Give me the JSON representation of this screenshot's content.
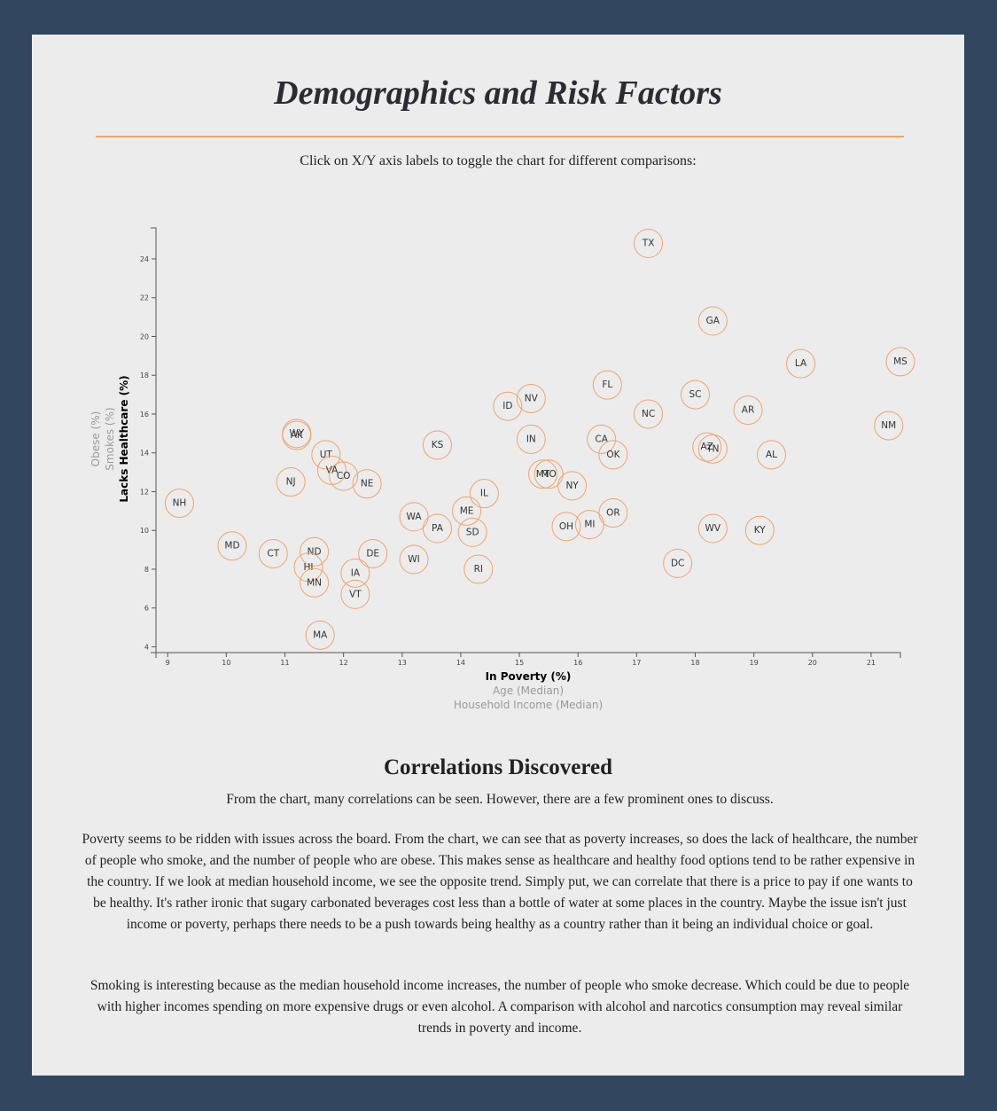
{
  "header": {
    "title": "Demographics and Risk Factors",
    "instructions": "Click on X/Y axis labels to toggle the chart for different comparisons:"
  },
  "chart_data": {
    "type": "scatter",
    "xlabel": "In Poverty (%)",
    "ylabel": "Lacks Healthcare (%)",
    "x_axis_options": [
      "In Poverty (%)",
      "Age (Median)",
      "Household Income (Median)"
    ],
    "y_axis_options": [
      "Lacks Healthcare (%)",
      "Smokes (%)",
      "Obese (%)"
    ],
    "active_x": "In Poverty (%)",
    "active_y": "Lacks Healthcare (%)",
    "xlim": [
      8.8,
      21.5
    ],
    "ylim": [
      3.7,
      25.6
    ],
    "x_ticks": [
      9,
      10,
      11,
      12,
      13,
      14,
      15,
      16,
      17,
      18,
      19,
      20,
      21
    ],
    "y_ticks": [
      4,
      6,
      8,
      10,
      12,
      14,
      16,
      18,
      20,
      22,
      24
    ],
    "marker_color": "#f0a36b",
    "points": [
      {
        "label": "TX",
        "x": 17.2,
        "y": 24.8
      },
      {
        "label": "GA",
        "x": 18.3,
        "y": 20.8
      },
      {
        "label": "LA",
        "x": 19.8,
        "y": 18.6
      },
      {
        "label": "MS",
        "x": 21.5,
        "y": 18.7
      },
      {
        "label": "FL",
        "x": 16.5,
        "y": 17.5
      },
      {
        "label": "SC",
        "x": 18.0,
        "y": 17.0
      },
      {
        "label": "NV",
        "x": 15.2,
        "y": 16.8
      },
      {
        "label": "ID",
        "x": 14.8,
        "y": 16.4
      },
      {
        "label": "AR",
        "x": 18.9,
        "y": 16.2
      },
      {
        "label": "NC",
        "x": 17.2,
        "y": 16.0
      },
      {
        "label": "NM",
        "x": 21.3,
        "y": 15.4
      },
      {
        "label": "WY",
        "x": 11.2,
        "y": 15.0
      },
      {
        "label": "AK",
        "x": 11.2,
        "y": 14.9
      },
      {
        "label": "IN",
        "x": 15.2,
        "y": 14.7
      },
      {
        "label": "CA",
        "x": 16.4,
        "y": 14.7
      },
      {
        "label": "KS",
        "x": 13.6,
        "y": 14.4
      },
      {
        "label": "AZ",
        "x": 18.2,
        "y": 14.3
      },
      {
        "label": "TN",
        "x": 18.3,
        "y": 14.2
      },
      {
        "label": "OK",
        "x": 16.6,
        "y": 13.9
      },
      {
        "label": "AL",
        "x": 19.3,
        "y": 13.9
      },
      {
        "label": "UT",
        "x": 11.7,
        "y": 13.9
      },
      {
        "label": "VA",
        "x": 11.8,
        "y": 13.1
      },
      {
        "label": "MT",
        "x": 15.4,
        "y": 12.9
      },
      {
        "label": "MO",
        "x": 15.5,
        "y": 12.9
      },
      {
        "label": "CO",
        "x": 12.0,
        "y": 12.8
      },
      {
        "label": "NJ",
        "x": 11.1,
        "y": 12.5
      },
      {
        "label": "NE",
        "x": 12.4,
        "y": 12.4
      },
      {
        "label": "NY",
        "x": 15.9,
        "y": 12.3
      },
      {
        "label": "IL",
        "x": 14.4,
        "y": 11.9
      },
      {
        "label": "NH",
        "x": 9.2,
        "y": 11.4
      },
      {
        "label": "ME",
        "x": 14.1,
        "y": 11.0
      },
      {
        "label": "OR",
        "x": 16.6,
        "y": 10.9
      },
      {
        "label": "WA",
        "x": 13.2,
        "y": 10.7
      },
      {
        "label": "OH",
        "x": 15.8,
        "y": 10.2
      },
      {
        "label": "MI",
        "x": 16.2,
        "y": 10.3
      },
      {
        "label": "PA",
        "x": 13.6,
        "y": 10.1
      },
      {
        "label": "WV",
        "x": 18.3,
        "y": 10.1
      },
      {
        "label": "KY",
        "x": 19.1,
        "y": 10.0
      },
      {
        "label": "SD",
        "x": 14.2,
        "y": 9.9
      },
      {
        "label": "MD",
        "x": 10.1,
        "y": 9.2
      },
      {
        "label": "CT",
        "x": 10.8,
        "y": 8.8
      },
      {
        "label": "ND",
        "x": 11.5,
        "y": 8.9
      },
      {
        "label": "DE",
        "x": 12.5,
        "y": 8.8
      },
      {
        "label": "WI",
        "x": 13.2,
        "y": 8.5
      },
      {
        "label": "DC",
        "x": 17.7,
        "y": 8.3
      },
      {
        "label": "HI",
        "x": 11.4,
        "y": 8.1
      },
      {
        "label": "RI",
        "x": 14.3,
        "y": 8.0
      },
      {
        "label": "IA",
        "x": 12.2,
        "y": 7.8
      },
      {
        "label": "MN",
        "x": 11.5,
        "y": 7.3
      },
      {
        "label": "VT",
        "x": 12.2,
        "y": 6.7
      },
      {
        "label": "MA",
        "x": 11.6,
        "y": 4.6
      }
    ]
  },
  "analysis": {
    "title": "Correlations Discovered",
    "intro": "From the chart, many correlations can be seen. However, there are a few prominent ones to discuss.",
    "paragraph_1": "Poverty seems to be ridden with issues across the board. From the chart, we can see that as poverty increases, so does the lack of healthcare, the number of people who smoke, and the number of people who are obese. This makes sense as healthcare and healthy food options tend to be rather expensive in the country. If we look at median household income, we see the opposite trend. Simply put, we can correlate that there is a price to pay if one wants to be healthy. It's rather ironic that sugary carbonated beverages cost less than a bottle of water at some places in the country. Maybe the issue isn't just income or poverty, perhaps there needs to be a push towards being healthy as a country rather than it being an individual choice or goal.",
    "paragraph_2": "Smoking is interesting because as the median household income increases, the number of people who smoke decrease. Which could be due to people with higher incomes spending on more expensive drugs or even alcohol. A comparison with alcohol and narcotics consumption may reveal similar trends in poverty and income."
  }
}
